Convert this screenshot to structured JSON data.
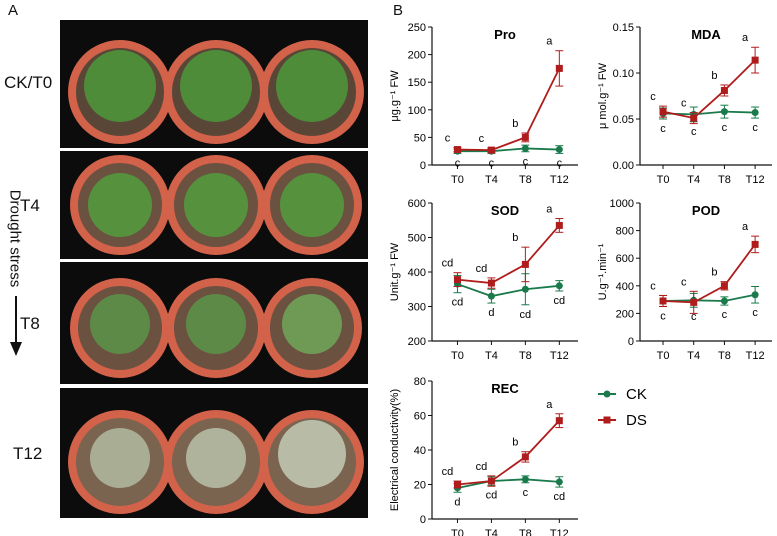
{
  "panels": {
    "a": "A",
    "b": "B"
  },
  "photos": {
    "rows": [
      {
        "label": "CK/T0"
      },
      {
        "label": "T4"
      },
      {
        "label": "T8"
      },
      {
        "label": "T12"
      }
    ],
    "arrow_label": "Drought stress"
  },
  "legend": {
    "items": [
      {
        "label": "CK",
        "color": "#1a7a4c"
      },
      {
        "label": "DS",
        "color": "#b01c1c"
      }
    ]
  },
  "chart_data": [
    {
      "type": "line",
      "title": "Pro",
      "ylabel": "μg.g⁻¹ FW",
      "categories": [
        "T0",
        "T4",
        "T8",
        "T12"
      ],
      "ylim": [
        0,
        250
      ],
      "yticks": [
        "0",
        "50",
        "100",
        "150",
        "200",
        "250"
      ],
      "series": [
        {
          "name": "CK",
          "values": [
            25,
            25,
            30,
            28
          ],
          "err": [
            4,
            4,
            6,
            7
          ],
          "labels": [
            "c",
            "c",
            "c",
            "c"
          ]
        },
        {
          "name": "DS",
          "values": [
            28,
            27,
            50,
            175
          ],
          "err": [
            4,
            4,
            8,
            32
          ],
          "labels": [
            "c",
            "c",
            "b",
            "a"
          ]
        }
      ]
    },
    {
      "type": "line",
      "title": "MDA",
      "ylabel": "μ mol.g⁻¹ FW",
      "categories": [
        "T0",
        "T4",
        "T8",
        "T12"
      ],
      "ylim": [
        0,
        0.15
      ],
      "yticks": [
        "0.00",
        "0.05",
        "0.10",
        "0.15"
      ],
      "series": [
        {
          "name": "CK",
          "values": [
            0.056,
            0.055,
            0.058,
            0.057
          ],
          "err": [
            0.006,
            0.008,
            0.007,
            0.006
          ],
          "labels": [
            "c",
            "c",
            "c",
            "c"
          ]
        },
        {
          "name": "DS",
          "values": [
            0.058,
            0.051,
            0.081,
            0.114
          ],
          "err": [
            0.006,
            0.006,
            0.006,
            0.014
          ],
          "labels": [
            "c",
            "c",
            "b",
            "a"
          ]
        }
      ]
    },
    {
      "type": "line",
      "title": "SOD",
      "ylabel": "Unit.g⁻¹ FW",
      "categories": [
        "T0",
        "T4",
        "T8",
        "T12"
      ],
      "ylim": [
        200,
        600
      ],
      "yticks": [
        "200",
        "300",
        "400",
        "500",
        "600"
      ],
      "series": [
        {
          "name": "CK",
          "values": [
            365,
            330,
            350,
            360
          ],
          "err": [
            25,
            20,
            45,
            15
          ],
          "labels": [
            "cd",
            "d",
            "cd",
            "cd"
          ]
        },
        {
          "name": "DS",
          "values": [
            378,
            368,
            422,
            535
          ],
          "err": [
            20,
            15,
            50,
            20
          ],
          "labels": [
            "cd",
            "cd",
            "b",
            "a"
          ]
        }
      ]
    },
    {
      "type": "line",
      "title": "POD",
      "ylabel": "U.g⁻¹.min⁻¹",
      "categories": [
        "T0",
        "T4",
        "T8",
        "T12"
      ],
      "ylim": [
        0,
        1000
      ],
      "yticks": [
        "0",
        "200",
        "400",
        "600",
        "800",
        "1000"
      ],
      "series": [
        {
          "name": "CK",
          "values": [
            290,
            295,
            290,
            335
          ],
          "err": [
            40,
            50,
            30,
            60
          ],
          "labels": [
            "c",
            "c",
            "c",
            "c"
          ]
        },
        {
          "name": "DS",
          "values": [
            290,
            280,
            400,
            700
          ],
          "err": [
            40,
            80,
            30,
            60
          ],
          "labels": [
            "c",
            "c",
            "b",
            "a"
          ]
        }
      ]
    },
    {
      "type": "line",
      "title": "REC",
      "ylabel": "Electrical conductivity(%)",
      "categories": [
        "T0",
        "T4",
        "T8",
        "T12"
      ],
      "ylim": [
        0,
        80
      ],
      "yticks": [
        "0",
        "20",
        "40",
        "60",
        "80"
      ],
      "series": [
        {
          "name": "CK",
          "values": [
            18,
            22,
            23,
            21.5
          ],
          "err": [
            2.5,
            2.5,
            2,
            3
          ],
          "labels": [
            "d",
            "cd",
            "c",
            "cd"
          ]
        },
        {
          "name": "DS",
          "values": [
            20,
            22,
            36,
            57
          ],
          "err": [
            2,
            3,
            3,
            4
          ],
          "labels": [
            "cd",
            "cd",
            "b",
            "a"
          ]
        }
      ]
    }
  ]
}
